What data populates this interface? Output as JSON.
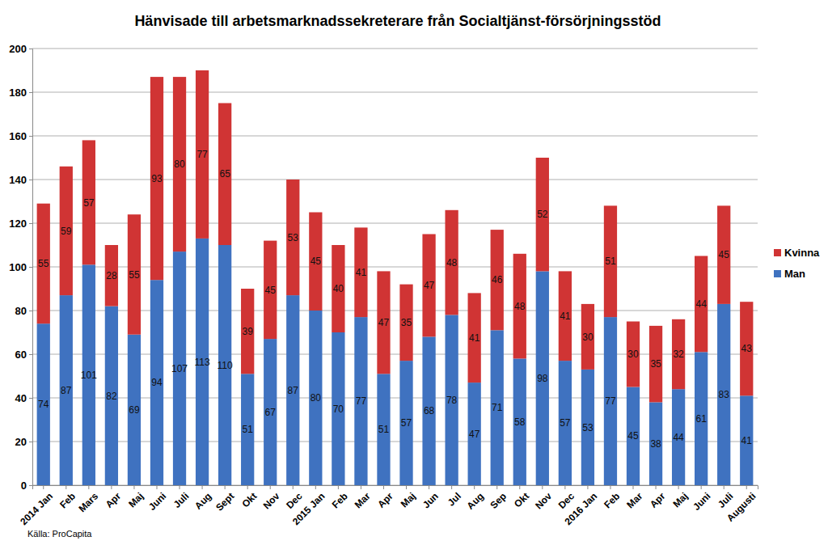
{
  "chart_data": {
    "type": "bar",
    "title": "Hänvisade till arbetsmarknadssekreterare från Socialtjänst-försörjningsstöd",
    "annotations": [
      "Källa: ProCapita"
    ],
    "categories": [
      "2014 Jan",
      "Feb",
      "Mars",
      "Apr",
      "Maj",
      "Juni",
      "Juli",
      "Aug",
      "Sept",
      "Okt",
      "Nov",
      "Dec",
      "2015 Jan",
      "Feb",
      "Mar",
      "Apr",
      "Maj",
      "Jun",
      "Jul",
      "Aug",
      "Sep",
      "Okt",
      "Nov",
      "Dec",
      "2016 Jan",
      "Feb",
      "Mar",
      "Apr",
      "Maj",
      "Juni",
      "Juli",
      "Augusti"
    ],
    "series": [
      {
        "name": "Man",
        "color": "#3f72c0",
        "values": [
          74,
          87,
          101,
          82,
          69,
          94,
          107,
          113,
          110,
          51,
          67,
          87,
          80,
          70,
          77,
          51,
          57,
          68,
          78,
          47,
          71,
          58,
          98,
          57,
          53,
          77,
          45,
          38,
          44,
          61,
          83,
          41
        ]
      },
      {
        "name": "Kvinna",
        "color": "#d03434",
        "values": [
          55,
          59,
          57,
          28,
          55,
          93,
          80,
          77,
          65,
          39,
          45,
          53,
          45,
          40,
          41,
          47,
          35,
          47,
          48,
          41,
          46,
          48,
          52,
          41,
          30,
          51,
          30,
          35,
          32,
          44,
          45,
          43
        ]
      }
    ],
    "ylim": [
      0,
      200
    ],
    "yticks": [
      0,
      20,
      40,
      60,
      80,
      100,
      120,
      140,
      160,
      180,
      200
    ],
    "grid": true,
    "stacked": true,
    "data_labels": true,
    "legend": "right"
  }
}
